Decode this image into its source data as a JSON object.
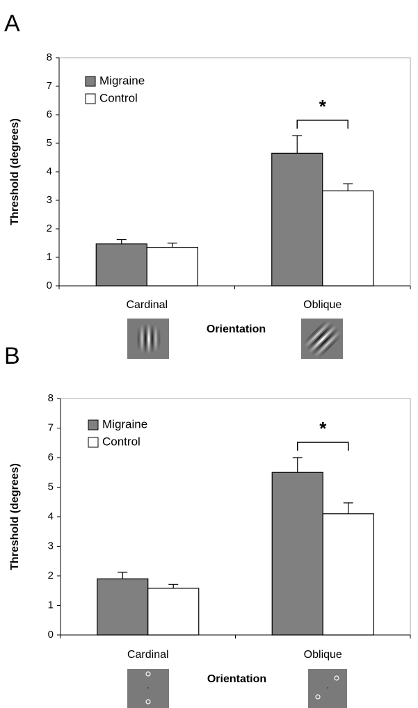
{
  "chart_data": [
    {
      "type": "bar",
      "panel_label": "A",
      "y_label": "Threshold (degrees)",
      "x_label": "Orientation",
      "categories": [
        "Cardinal",
        "Oblique"
      ],
      "series": [
        {
          "name": "Migraine",
          "color": "#808080",
          "values": [
            1.47,
            4.65
          ],
          "errors": [
            0.15,
            0.62
          ]
        },
        {
          "name": "Control",
          "color": "#ffffff",
          "values": [
            1.35,
            3.33
          ],
          "errors": [
            0.15,
            0.25
          ]
        }
      ],
      "ylim": [
        0,
        8
      ],
      "yticks": [
        0,
        1,
        2,
        3,
        4,
        5,
        6,
        7,
        8
      ],
      "legend": "upper left",
      "significance": {
        "category": 1,
        "label": "*"
      }
    },
    {
      "type": "bar",
      "panel_label": "B",
      "y_label": "Threshold (degrees)",
      "x_label": "Orientation",
      "categories": [
        "Cardinal",
        "Oblique"
      ],
      "series": [
        {
          "name": "Migraine",
          "color": "#808080",
          "values": [
            1.9,
            5.5
          ],
          "errors": [
            0.22,
            0.5
          ]
        },
        {
          "name": "Control",
          "color": "#ffffff",
          "values": [
            1.58,
            4.1
          ],
          "errors": [
            0.13,
            0.37
          ]
        }
      ],
      "ylim": [
        0,
        8
      ],
      "yticks": [
        0,
        1,
        2,
        3,
        4,
        5,
        6,
        7,
        8
      ],
      "legend": "upper left",
      "significance": {
        "category": 1,
        "label": "*"
      }
    }
  ]
}
